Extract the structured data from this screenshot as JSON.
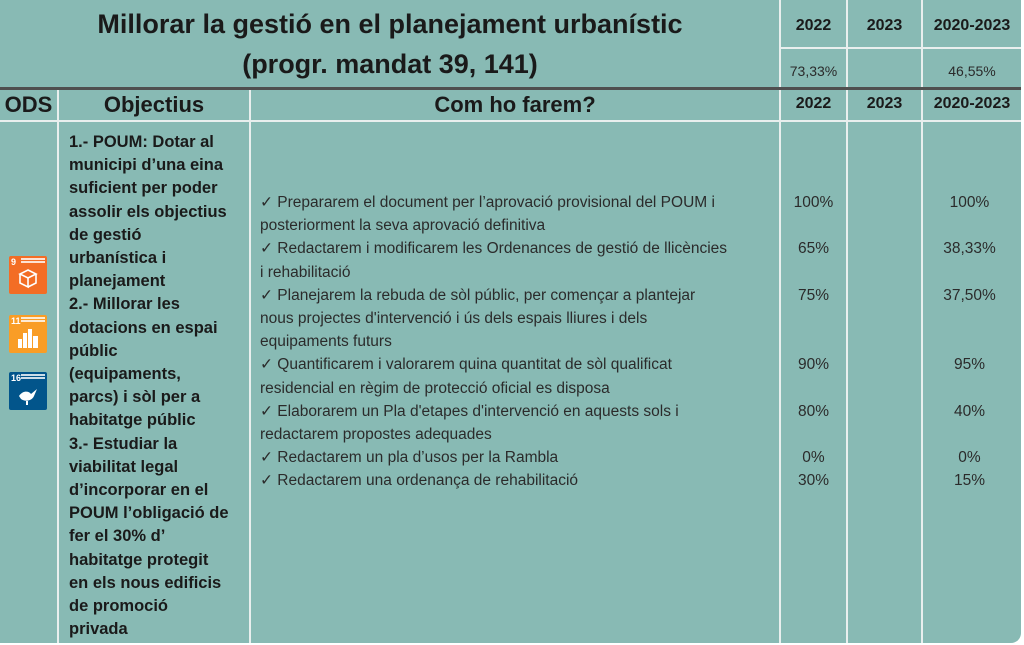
{
  "header": {
    "title_line1": "Millorar la gestió en el planejament urbanístic",
    "title_line2": "(progr. mandat 39, 141)",
    "years": [
      "2022",
      "2023",
      "2020-2023"
    ],
    "summary": [
      "73,33%",
      "",
      "46,55%"
    ]
  },
  "columns": {
    "ods": "ODS",
    "objectius": "Objectius",
    "com": "Com ho farem?",
    "years": [
      "2022",
      "2023",
      "2020-2023"
    ]
  },
  "ods_icons": [
    {
      "number": "9",
      "name": "industry-innovation-icon",
      "color": "#f36d25"
    },
    {
      "number": "11",
      "name": "sustainable-cities-icon",
      "color": "#f99d26"
    },
    {
      "number": "16",
      "name": "peace-justice-icon",
      "color": "#02558b"
    }
  ],
  "objectives": [
    "1.- POUM: Dotar al\nmunicipi d’una eina\nsuficient per poder\nassolir els objectius\nde gestió\nurbanística i\nplanejament",
    "2.- Millorar les\ndotacions en espai\npúblic\n(equipaments,\nparcs) i sòl per a\nhabitatge públic",
    "3.- Estudiar la\nviabilitat legal\nd’incorporar en el\nPOUM l’obligació de\nfer el 30% d’\nhabitatge protegit\nen els nous edificis\nde promoció\nprivada"
  ],
  "actions": [
    {
      "lines": [
        "✓ Prepararem el document per l’aprovació provisional del POUM i",
        "posteriorment la seva aprovació definitiva"
      ],
      "y2022": "100%",
      "y2023": "",
      "total": "100%"
    },
    {
      "lines": [
        "✓ Redactarem i modificarem les Ordenances de gestió de llicències",
        "i rehabilitació"
      ],
      "y2022": "65%",
      "y2023": "",
      "total": "38,33%"
    },
    {
      "lines": [
        "✓ Planejarem la rebuda de sòl públic, per començar a plantejar",
        "nous projectes d'intervenció i ús dels espais lliures i dels",
        "equipaments futurs"
      ],
      "y2022": "75%",
      "y2023": "",
      "total": "37,50%"
    },
    {
      "lines": [
        "✓ Quantificarem i valorarem quina quantitat de sòl qualificat",
        "residencial en règim de protecció oficial es disposa"
      ],
      "y2022": "90%",
      "y2023": "",
      "total": "95%"
    },
    {
      "lines": [
        "✓ Elaborarem un Pla d'etapes d'intervenció en aquests sols i",
        "redactarem propostes adequades"
      ],
      "y2022": "80%",
      "y2023": "",
      "total": "40%"
    },
    {
      "lines": [
        "✓ Redactarem un pla d’usos per la Rambla"
      ],
      "y2022": "0%",
      "y2023": "",
      "total": "0%"
    },
    {
      "lines": [
        "✓ Redactarem una ordenança de rehabilitació"
      ],
      "y2022": "30%",
      "y2023": "",
      "total": "15%"
    }
  ]
}
